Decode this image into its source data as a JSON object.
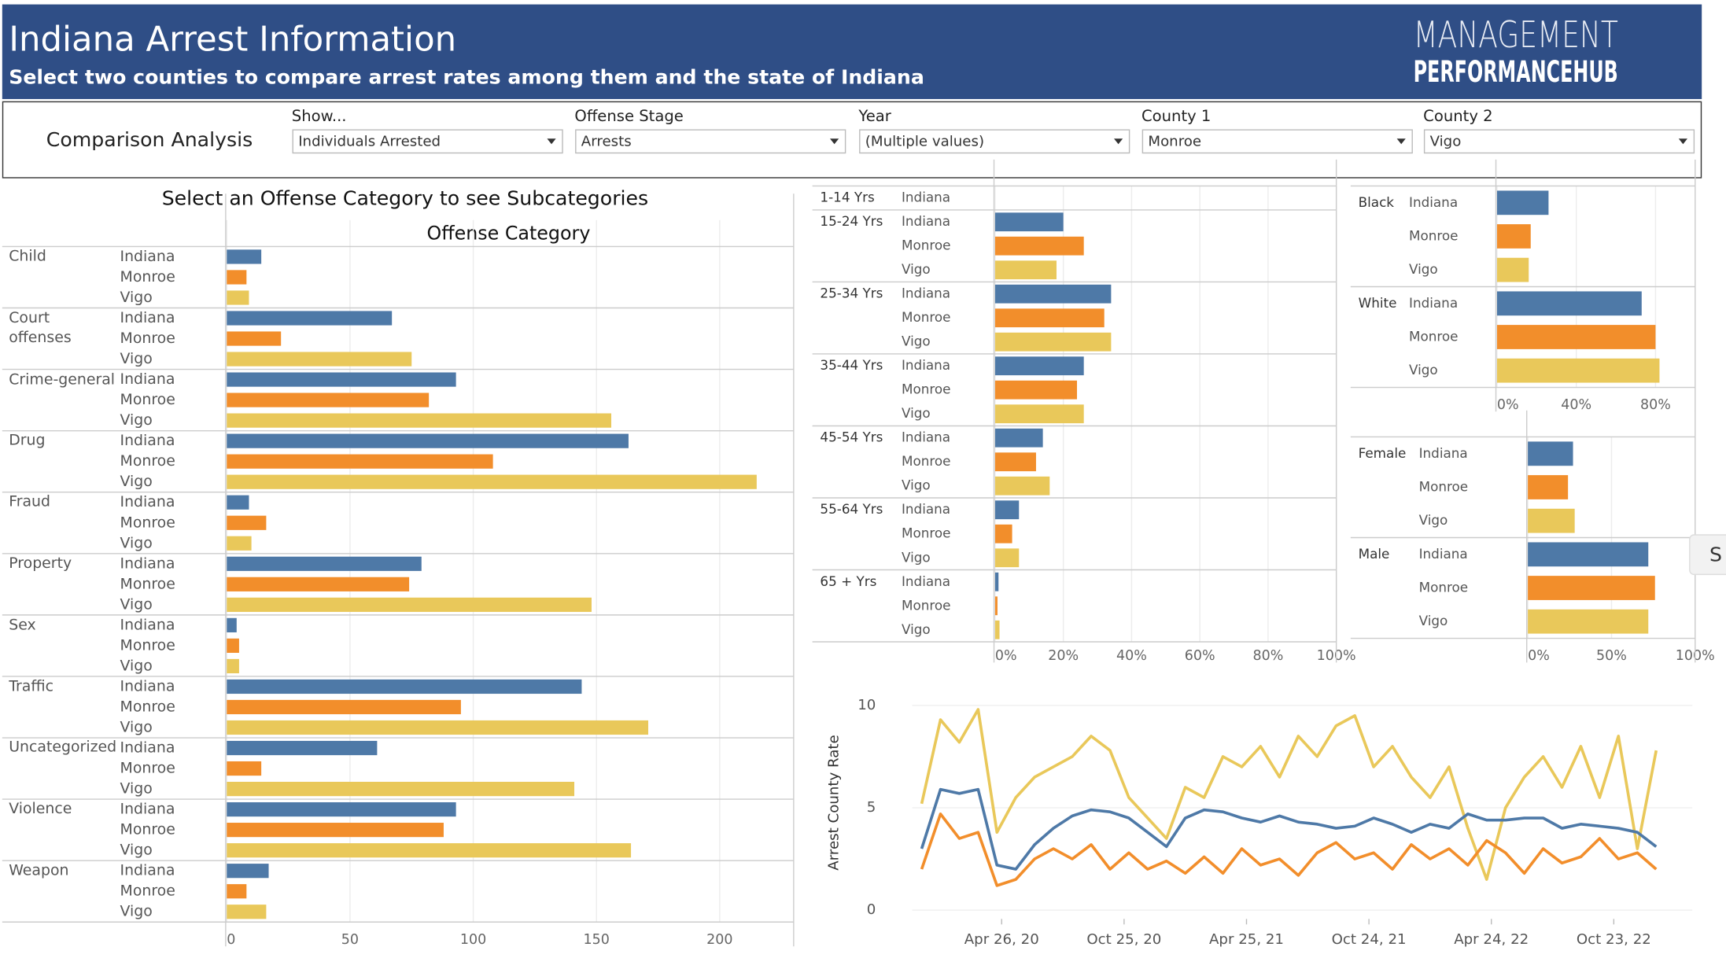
{
  "header": {
    "title": "Indiana Arrest Information",
    "subtitle": "Select two counties to compare arrest rates  among them and the state of Indiana",
    "logo_top": "MANAGEMENT",
    "logo_bottom": "PERFORMANCEHUB"
  },
  "controls": {
    "label": "Comparison Analysis",
    "filters": [
      {
        "label": "Show...",
        "value": "Individuals Arrested"
      },
      {
        "label": "Offense Stage",
        "value": "Arrests"
      },
      {
        "label": "Year",
        "value": "(Multiple values)"
      },
      {
        "label": "County 1",
        "value": "Monroe"
      },
      {
        "label": "County 2",
        "value": "Vigo"
      }
    ]
  },
  "side_tab": "S",
  "chart_data": [
    {
      "type": "hbar",
      "title": "Select an Offense Category to see Subcategories",
      "subtitle": "Offense Category",
      "categories": [
        "Child",
        "Court offenses",
        "Crime-general",
        "Drug",
        "Fraud",
        "Property",
        "Sex",
        "Traffic",
        "Uncategorized",
        "Violence",
        "Weapon"
      ],
      "series": [
        {
          "name": "Indiana",
          "color": "#4e79a7",
          "values": [
            14,
            67,
            93,
            163,
            9,
            79,
            4,
            144,
            61,
            93,
            17
          ]
        },
        {
          "name": "Monroe",
          "color": "#f28e2b",
          "values": [
            8,
            22,
            82,
            108,
            16,
            74,
            5,
            95,
            14,
            88,
            8
          ]
        },
        {
          "name": "Vigo",
          "color": "#e9c85a",
          "values": [
            9,
            75,
            156,
            215,
            10,
            148,
            5,
            171,
            141,
            164,
            16
          ]
        }
      ],
      "xlim": [
        0,
        230
      ],
      "xticks": [
        0,
        50,
        100,
        150,
        200
      ],
      "grid": true
    },
    {
      "type": "hbar",
      "categories": [
        "1-14 Yrs",
        "15-24 Yrs",
        "25-34 Yrs",
        "35-44 Yrs",
        "45-54 Yrs",
        "55-64 Yrs",
        "65 + Yrs"
      ],
      "series": [
        {
          "name": "Indiana",
          "color": "#4e79a7",
          "values": [
            0,
            20,
            34,
            26,
            14,
            7,
            1
          ]
        },
        {
          "name": "Monroe",
          "color": "#f28e2b",
          "values": [
            null,
            26,
            32,
            24,
            12,
            5,
            0.7
          ]
        },
        {
          "name": "Vigo",
          "color": "#e9c85a",
          "values": [
            null,
            18,
            34,
            26,
            16,
            7,
            1.3
          ]
        }
      ],
      "xlim": [
        0,
        100
      ],
      "xticks": [
        {
          "value": 0,
          "label": "0%"
        },
        {
          "value": 20,
          "label": "20%"
        },
        {
          "value": 40,
          "label": "40%"
        },
        {
          "value": 60,
          "label": "60%"
        },
        {
          "value": 80,
          "label": "80%"
        },
        {
          "value": 100,
          "label": "100%"
        }
      ],
      "grid": true
    },
    {
      "type": "hbar",
      "categories": [
        "Black",
        "White"
      ],
      "series": [
        {
          "name": "Indiana",
          "color": "#4e79a7",
          "values": [
            26,
            73
          ]
        },
        {
          "name": "Monroe",
          "color": "#f28e2b",
          "values": [
            17,
            80
          ]
        },
        {
          "name": "Vigo",
          "color": "#e9c85a",
          "values": [
            16,
            82
          ]
        }
      ],
      "xlim": [
        0,
        100
      ],
      "xticks": [
        {
          "value": 0,
          "label": "0%"
        },
        {
          "value": 40,
          "label": "40%"
        },
        {
          "value": 80,
          "label": "80%"
        }
      ],
      "grid": true
    },
    {
      "type": "hbar",
      "categories": [
        "Female",
        "Male"
      ],
      "series": [
        {
          "name": "Indiana",
          "color": "#4e79a7",
          "values": [
            27,
            72
          ]
        },
        {
          "name": "Monroe",
          "color": "#f28e2b",
          "values": [
            24,
            76
          ]
        },
        {
          "name": "Vigo",
          "color": "#e9c85a",
          "values": [
            28,
            72
          ]
        }
      ],
      "xlim": [
        0,
        100
      ],
      "xticks": [
        {
          "value": 0,
          "label": "0%"
        },
        {
          "value": 50,
          "label": "50%"
        },
        {
          "value": 100,
          "label": "100%"
        }
      ],
      "grid": true
    },
    {
      "type": "line",
      "y_label": "Arrest County Rate",
      "x": [
        "2019-12-29",
        "2020-01-26",
        "2020-02-23",
        "2020-03-22",
        "2020-04-19",
        "2020-05-17",
        "2020-06-14",
        "2020-07-12",
        "2020-08-09",
        "2020-09-06",
        "2020-10-04",
        "2020-11-01",
        "2020-11-29",
        "2020-12-27",
        "2021-01-24",
        "2021-02-21",
        "2021-03-21",
        "2021-04-18",
        "2021-05-16",
        "2021-06-13",
        "2021-07-11",
        "2021-08-08",
        "2021-09-05",
        "2021-10-03",
        "2021-10-31",
        "2021-11-28",
        "2021-12-26",
        "2022-01-23",
        "2022-02-20",
        "2022-03-20",
        "2022-04-17",
        "2022-05-15",
        "2022-06-12",
        "2022-07-10",
        "2022-08-07",
        "2022-09-04",
        "2022-10-02",
        "2022-10-30",
        "2022-11-27",
        "2022-12-25"
      ],
      "series": [
        {
          "name": "Vigo",
          "color": "#e9c85a",
          "values": [
            5.2,
            9.3,
            8.2,
            9.8,
            3.8,
            5.5,
            6.5,
            7.0,
            7.5,
            8.5,
            7.8,
            5.5,
            4.5,
            3.5,
            6.0,
            5.5,
            7.5,
            7.0,
            8.0,
            6.5,
            8.5,
            7.5,
            9.0,
            9.5,
            7.0,
            8.0,
            6.5,
            5.5,
            7.0,
            4.0,
            1.5,
            5.0,
            6.5,
            7.5,
            6.0,
            8.0,
            5.5,
            8.5,
            3.0,
            7.8
          ]
        },
        {
          "name": "Monroe",
          "color": "#f28e2b",
          "values": [
            2.0,
            4.7,
            3.5,
            3.8,
            1.2,
            1.5,
            2.5,
            3.0,
            2.5,
            3.2,
            2.0,
            2.8,
            2.0,
            2.4,
            1.8,
            2.6,
            1.8,
            3.0,
            2.2,
            2.5,
            1.7,
            2.8,
            3.3,
            2.5,
            2.8,
            2.0,
            3.2,
            2.5,
            3.0,
            2.2,
            3.4,
            2.8,
            1.8,
            3.0,
            2.3,
            2.6,
            3.5,
            2.5,
            2.8,
            2.0
          ]
        },
        {
          "name": "Indiana",
          "color": "#4e79a7",
          "values": [
            3.0,
            5.9,
            5.7,
            5.9,
            2.2,
            2.0,
            3.2,
            4.0,
            4.6,
            4.9,
            4.8,
            4.5,
            3.8,
            3.1,
            4.5,
            4.9,
            4.8,
            4.5,
            4.3,
            4.6,
            4.3,
            4.2,
            4.0,
            4.1,
            4.5,
            4.2,
            3.8,
            4.2,
            4.0,
            4.7,
            4.4,
            4.4,
            4.5,
            4.5,
            4.0,
            4.2,
            4.1,
            4.0,
            3.8,
            3.1
          ]
        }
      ],
      "xlim": [
        "2019-12-15",
        "2023-01-15"
      ],
      "xticks": [
        {
          "value": "2020-04-26",
          "label": "Apr 26, 20"
        },
        {
          "value": "2020-10-25",
          "label": "Oct 25, 20"
        },
        {
          "value": "2021-04-25",
          "label": "Apr 25, 21"
        },
        {
          "value": "2021-10-24",
          "label": "Oct 24, 21"
        },
        {
          "value": "2022-04-24",
          "label": "Apr 24, 22"
        },
        {
          "value": "2022-10-23",
          "label": "Oct 23, 22"
        }
      ],
      "ylim": [
        0,
        10.5
      ],
      "yticks": [
        0,
        5,
        10
      ],
      "grid": true
    }
  ]
}
